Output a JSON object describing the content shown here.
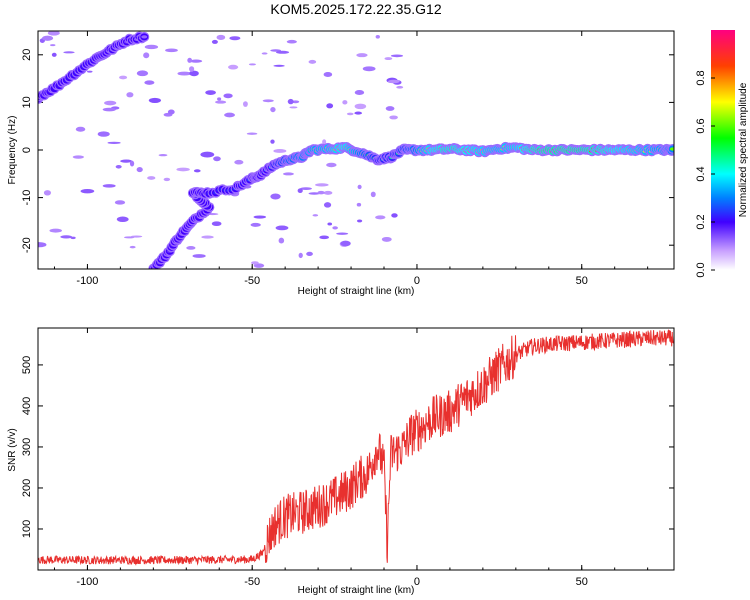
{
  "figure": {
    "title": "KOM5.2025.172.22.35.G12"
  },
  "chart_data": [
    {
      "type": "heatmap",
      "xlabel": "Height of straight line (km)",
      "ylabel": "Frequency (Hz)",
      "xlim": [
        -115,
        78
      ],
      "ylim": [
        -25,
        25
      ],
      "xticks": [
        -100,
        -50,
        0,
        50
      ],
      "yticks": [
        -20,
        -10,
        0,
        10,
        20
      ],
      "colorbar": {
        "label": "Normalized spectral amplitude",
        "range": [
          0,
          1
        ],
        "ticks": [
          "0.0",
          "0.2",
          "0.4",
          "0.6",
          "0.8"
        ]
      },
      "ridge": [
        {
          "x": -115,
          "y": 11,
          "a": 0.18
        },
        {
          "x": -110,
          "y": 13,
          "a": 0.2
        },
        {
          "x": -104,
          "y": 16,
          "a": 0.22
        },
        {
          "x": -98,
          "y": 19,
          "a": 0.22
        },
        {
          "x": -93,
          "y": 21,
          "a": 0.15
        },
        {
          "x": -88,
          "y": 23,
          "a": 0.15
        },
        {
          "x": -82,
          "y": 24,
          "a": 0.12
        },
        {
          "x": -80,
          "y": -25,
          "a": 0.15
        },
        {
          "x": -76,
          "y": -22,
          "a": 0.16
        },
        {
          "x": -72,
          "y": -18,
          "a": 0.18
        },
        {
          "x": -68,
          "y": -15,
          "a": 0.18
        },
        {
          "x": -63,
          "y": -12,
          "a": 0.2
        },
        {
          "x": -68,
          "y": -9,
          "a": 0.22
        },
        {
          "x": -63,
          "y": -9,
          "a": 0.22
        },
        {
          "x": -55,
          "y": -8,
          "a": 0.25
        },
        {
          "x": -50,
          "y": -6,
          "a": 0.28
        },
        {
          "x": -47,
          "y": -5,
          "a": 0.35
        },
        {
          "x": -43,
          "y": -3,
          "a": 0.45
        },
        {
          "x": -39,
          "y": -2,
          "a": 0.55
        },
        {
          "x": -35,
          "y": -1.5,
          "a": 0.6
        },
        {
          "x": -32,
          "y": 0,
          "a": 0.65
        },
        {
          "x": -27,
          "y": 0.2,
          "a": 0.7
        },
        {
          "x": -22,
          "y": 0.5,
          "a": 0.8
        },
        {
          "x": -17,
          "y": -0.5,
          "a": 0.6
        },
        {
          "x": -12,
          "y": -2,
          "a": 0.45
        },
        {
          "x": -8,
          "y": -1.5,
          "a": 0.45
        },
        {
          "x": -4,
          "y": 0,
          "a": 0.5
        },
        {
          "x": 0,
          "y": 0,
          "a": 0.6
        },
        {
          "x": 5,
          "y": 0,
          "a": 0.8
        },
        {
          "x": 10,
          "y": 0.2,
          "a": 0.85
        },
        {
          "x": 15,
          "y": 0,
          "a": 0.8
        },
        {
          "x": 20,
          "y": -0.3,
          "a": 0.75
        },
        {
          "x": 25,
          "y": 0.3,
          "a": 0.7
        },
        {
          "x": 30,
          "y": 0.5,
          "a": 0.75
        },
        {
          "x": 35,
          "y": 0,
          "a": 0.85
        },
        {
          "x": 40,
          "y": 0,
          "a": 0.9
        },
        {
          "x": 45,
          "y": 0,
          "a": 0.9
        },
        {
          "x": 50,
          "y": 0,
          "a": 0.9
        },
        {
          "x": 55,
          "y": 0,
          "a": 0.85
        },
        {
          "x": 60,
          "y": 0,
          "a": 0.8
        },
        {
          "x": 65,
          "y": 0,
          "a": 0.75
        },
        {
          "x": 70,
          "y": 0,
          "a": 0.7
        },
        {
          "x": 75,
          "y": 0,
          "a": 0.65
        },
        {
          "x": 78,
          "y": 0,
          "a": 0.6
        }
      ]
    },
    {
      "type": "line",
      "xlabel": "Height of straight line (km)",
      "ylabel": "SNR (v/v)",
      "xlim": [
        -115,
        78
      ],
      "ylim": [
        0,
        590
      ],
      "xticks": [
        -100,
        -50,
        0,
        50
      ],
      "yticks": [
        100,
        200,
        300,
        400,
        500
      ],
      "color": "#e8302e",
      "series": [
        {
          "x": [
            -115,
            -100,
            -80,
            -60,
            -50,
            -47,
            -45,
            -43,
            -40,
            -35,
            -30,
            -25,
            -20,
            -18,
            -15,
            -12,
            -10,
            -9,
            -8,
            -6,
            -4,
            -2,
            0,
            5,
            10,
            15,
            20,
            25,
            30,
            35,
            40,
            50,
            60,
            70,
            78
          ],
          "y": [
            25,
            24,
            24,
            25,
            26,
            40,
            80,
            110,
            130,
            140,
            155,
            175,
            200,
            220,
            235,
            300,
            250,
            60,
            280,
            290,
            300,
            330,
            340,
            370,
            385,
            420,
            450,
            490,
            525,
            545,
            550,
            555,
            560,
            565,
            565
          ]
        }
      ]
    }
  ]
}
